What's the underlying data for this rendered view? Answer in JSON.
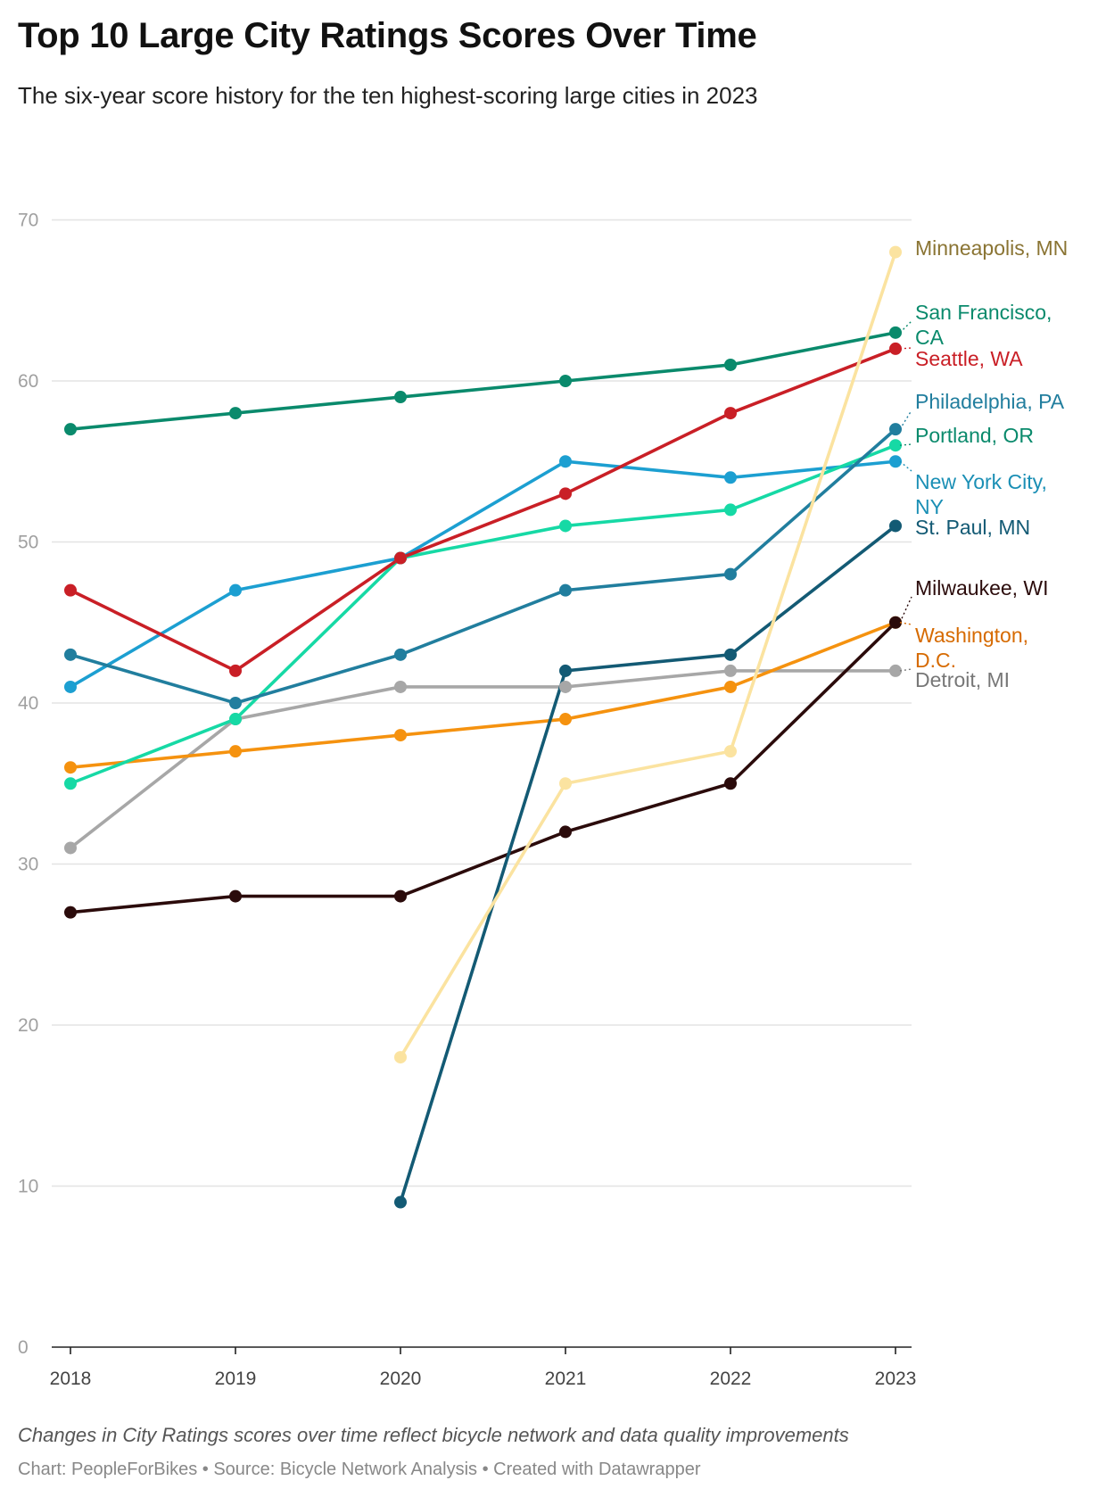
{
  "header": {
    "title": "Top 10 Large City Ratings Scores Over Time",
    "subtitle": "The six-year score history for the ten highest-scoring large cities in 2023"
  },
  "footer": {
    "note": "Changes in City Ratings scores over time reflect bicycle network and data quality improvements",
    "chart_credit": "Chart: PeopleForBikes",
    "source": "Source: Bicycle Network Analysis",
    "created_with": "Created with Datawrapper",
    "separator": "•"
  },
  "chart_data": {
    "type": "line",
    "title": "Top 10 Large City Ratings Scores Over Time",
    "xlabel": "",
    "ylabel": "",
    "x": [
      "2018",
      "2019",
      "2020",
      "2021",
      "2022",
      "2023"
    ],
    "ylim": [
      0,
      70
    ],
    "yticks": [
      "0",
      "10",
      "20",
      "30",
      "40",
      "50",
      "60",
      "70"
    ],
    "grid": true,
    "legend": "direct labels at right end of lines",
    "series": [
      {
        "name": "Minneapolis, MN",
        "label_lines": [
          "Minneapolis, MN"
        ],
        "line_color": "#fbe3a0",
        "label_color": "#8a7433",
        "values": [
          null,
          null,
          18,
          35,
          37,
          68
        ]
      },
      {
        "name": "San Francisco, CA",
        "label_lines": [
          "San Francisco,",
          "CA"
        ],
        "line_color": "#0a8a6c",
        "label_color": "#0a8a6c",
        "values": [
          57,
          58,
          59,
          60,
          61,
          63
        ]
      },
      {
        "name": "Seattle, WA",
        "label_lines": [
          "Seattle, WA"
        ],
        "line_color": "#c91f26",
        "label_color": "#c91f26",
        "values": [
          47,
          42,
          49,
          53,
          58,
          62
        ]
      },
      {
        "name": "Philadelphia, PA",
        "label_lines": [
          "Philadelphia, PA"
        ],
        "line_color": "#217e9e",
        "label_color": "#217e9e",
        "values": [
          43,
          40,
          43,
          47,
          48,
          57
        ]
      },
      {
        "name": "Portland, OR",
        "label_lines": [
          "Portland, OR"
        ],
        "line_color": "#16d9a5",
        "label_color": "#0a8a6c",
        "values": [
          35,
          39,
          49,
          51,
          52,
          56
        ]
      },
      {
        "name": "New York City, NY",
        "label_lines": [
          "New York City,",
          "NY"
        ],
        "line_color": "#1c9fd1",
        "label_color": "#1a8fb5",
        "values": [
          41,
          47,
          49,
          55,
          54,
          55
        ]
      },
      {
        "name": "St. Paul, MN",
        "label_lines": [
          "St. Paul, MN"
        ],
        "line_color": "#135a74",
        "label_color": "#135a74",
        "values": [
          null,
          null,
          9,
          42,
          43,
          51
        ]
      },
      {
        "name": "Milwaukee, WI",
        "label_lines": [
          "Milwaukee, WI"
        ],
        "line_color": "#2b0b0b",
        "label_color": "#2b0b0b",
        "values": [
          27,
          28,
          28,
          32,
          35,
          45
        ]
      },
      {
        "name": "Washington, D.C.",
        "label_lines": [
          "Washington,",
          "D.C."
        ],
        "line_color": "#f5920f",
        "label_color": "#d66a00",
        "values": [
          36,
          37,
          38,
          39,
          41,
          45
        ]
      },
      {
        "name": "Detroit, MI",
        "label_lines": [
          "Detroit, MI"
        ],
        "line_color": "#a7a7a7",
        "label_color": "#777777",
        "values": [
          31,
          39,
          41,
          41,
          42,
          42
        ]
      }
    ]
  }
}
